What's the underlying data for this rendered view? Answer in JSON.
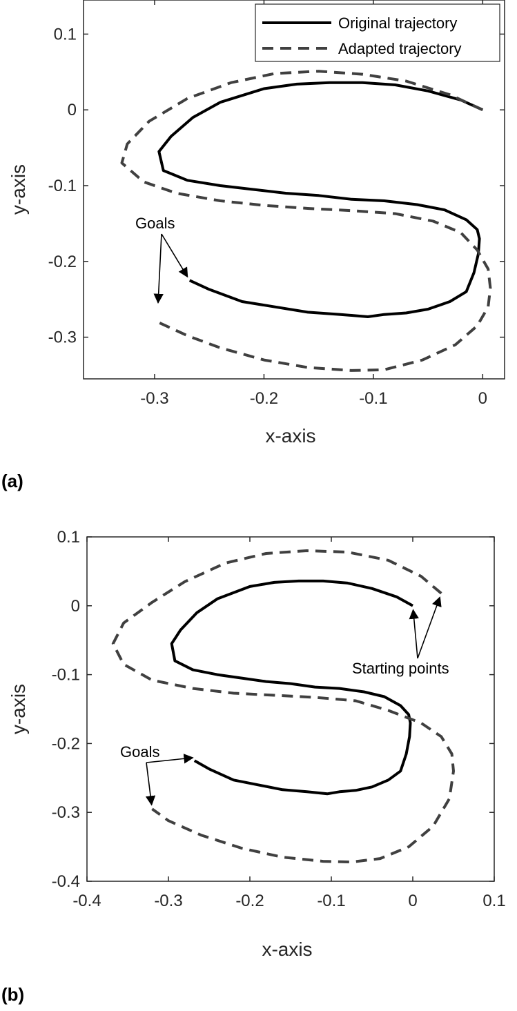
{
  "chart_data": [
    {
      "type": "line",
      "panel_label": "(a)",
      "xlabel": "x-axis",
      "ylabel": "y-axis",
      "xlim": [
        -0.365,
        0.02
      ],
      "ylim": [
        -0.355,
        0.145
      ],
      "xticks": [
        -0.3,
        -0.2,
        -0.1,
        0
      ],
      "xtick_labels": [
        "-0.3",
        "-0.2",
        "-0.1",
        "0"
      ],
      "yticks": [
        0.1,
        0,
        -0.1,
        -0.2,
        -0.3
      ],
      "ytick_labels": [
        "0.1",
        "0",
        "-0.1",
        "-0.2",
        "-0.3"
      ],
      "grid": false,
      "legend": {
        "placement": "top-right",
        "entries": [
          "Original trajectory",
          "Adapted trajectory"
        ]
      },
      "series": [
        {
          "name": "Original trajectory",
          "style": "solid",
          "color": "#000000",
          "x": [
            0,
            -0.02,
            -0.05,
            -0.08,
            -0.11,
            -0.14,
            -0.17,
            -0.2,
            -0.24,
            -0.265,
            -0.285,
            -0.296,
            -0.292,
            -0.27,
            -0.24,
            -0.21,
            -0.18,
            -0.15,
            -0.12,
            -0.09,
            -0.06,
            -0.035,
            -0.015,
            -0.005,
            -0.003,
            -0.004,
            -0.008,
            -0.015,
            -0.03,
            -0.05,
            -0.07,
            -0.09,
            -0.105,
            -0.13,
            -0.16,
            -0.19,
            -0.22,
            -0.25,
            -0.268
          ],
          "y": [
            0,
            0.013,
            0.025,
            0.033,
            0.036,
            0.036,
            0.034,
            0.028,
            0.01,
            -0.01,
            -0.035,
            -0.055,
            -0.08,
            -0.093,
            -0.1,
            -0.105,
            -0.11,
            -0.113,
            -0.118,
            -0.12,
            -0.125,
            -0.132,
            -0.145,
            -0.158,
            -0.17,
            -0.19,
            -0.215,
            -0.24,
            -0.253,
            -0.263,
            -0.268,
            -0.27,
            -0.273,
            -0.27,
            -0.267,
            -0.26,
            -0.253,
            -0.237,
            -0.225
          ]
        },
        {
          "name": "Adapted trajectory",
          "style": "dashed",
          "color": "#404040",
          "x": [
            0,
            -0.03,
            -0.07,
            -0.11,
            -0.15,
            -0.19,
            -0.23,
            -0.27,
            -0.305,
            -0.325,
            -0.33,
            -0.31,
            -0.28,
            -0.24,
            -0.2,
            -0.16,
            -0.12,
            -0.08,
            -0.045,
            -0.02,
            -0.005,
            0.005,
            0.007,
            0.005,
            -0.005,
            -0.025,
            -0.055,
            -0.09,
            -0.12,
            -0.16,
            -0.2,
            -0.24,
            -0.27,
            -0.297
          ],
          "y": [
            0,
            0.02,
            0.038,
            0.047,
            0.051,
            0.048,
            0.036,
            0.015,
            -0.015,
            -0.045,
            -0.07,
            -0.095,
            -0.11,
            -0.12,
            -0.126,
            -0.13,
            -0.133,
            -0.137,
            -0.147,
            -0.162,
            -0.185,
            -0.21,
            -0.235,
            -0.26,
            -0.285,
            -0.31,
            -0.33,
            -0.343,
            -0.344,
            -0.34,
            -0.33,
            -0.314,
            -0.298,
            -0.28
          ]
        }
      ],
      "annotations": [
        {
          "text": "Goals",
          "arrows_to": [
            [
              -0.268,
              -0.225
            ],
            [
              -0.297,
              -0.26
            ]
          ]
        }
      ]
    },
    {
      "type": "line",
      "panel_label": "(b)",
      "xlabel": "x-axis",
      "ylabel": "y-axis",
      "xlim": [
        -0.4,
        0.1
      ],
      "ylim": [
        -0.4,
        0.1
      ],
      "xticks": [
        -0.4,
        -0.3,
        -0.2,
        -0.1,
        0,
        0.1
      ],
      "xtick_labels": [
        "-0.4",
        "-0.3",
        "-0.2",
        "-0.1",
        "0",
        "0.1"
      ],
      "yticks": [
        0.1,
        0,
        -0.1,
        -0.2,
        -0.3,
        -0.4
      ],
      "ytick_labels": [
        "0.1",
        "0",
        "-0.1",
        "-0.2",
        "-0.3",
        "-0.4"
      ],
      "grid": false,
      "series": [
        {
          "name": "Original trajectory",
          "style": "solid",
          "color": "#000000",
          "x": [
            0,
            -0.02,
            -0.05,
            -0.08,
            -0.11,
            -0.14,
            -0.17,
            -0.2,
            -0.24,
            -0.265,
            -0.285,
            -0.296,
            -0.292,
            -0.27,
            -0.24,
            -0.21,
            -0.18,
            -0.15,
            -0.12,
            -0.09,
            -0.06,
            -0.035,
            -0.015,
            -0.005,
            -0.003,
            -0.004,
            -0.008,
            -0.015,
            -0.03,
            -0.05,
            -0.07,
            -0.09,
            -0.105,
            -0.13,
            -0.16,
            -0.19,
            -0.22,
            -0.25,
            -0.268
          ],
          "y": [
            0,
            0.013,
            0.025,
            0.033,
            0.036,
            0.036,
            0.034,
            0.028,
            0.01,
            -0.01,
            -0.035,
            -0.055,
            -0.08,
            -0.093,
            -0.1,
            -0.105,
            -0.11,
            -0.113,
            -0.118,
            -0.12,
            -0.125,
            -0.132,
            -0.145,
            -0.158,
            -0.17,
            -0.19,
            -0.215,
            -0.24,
            -0.253,
            -0.263,
            -0.268,
            -0.27,
            -0.273,
            -0.27,
            -0.267,
            -0.26,
            -0.253,
            -0.237,
            -0.225
          ]
        },
        {
          "name": "Adapted trajectory",
          "style": "dashed",
          "color": "#404040",
          "x": [
            0.035,
            0.01,
            -0.03,
            -0.08,
            -0.13,
            -0.18,
            -0.23,
            -0.28,
            -0.32,
            -0.355,
            -0.368,
            -0.355,
            -0.32,
            -0.27,
            -0.22,
            -0.17,
            -0.12,
            -0.07,
            -0.03,
            0.01,
            0.035,
            0.048,
            0.05,
            0.045,
            0.025,
            -0.005,
            -0.04,
            -0.075,
            -0.11,
            -0.16,
            -0.21,
            -0.26,
            -0.3,
            -0.32
          ],
          "y": [
            0.018,
            0.043,
            0.066,
            0.078,
            0.08,
            0.076,
            0.062,
            0.035,
            0.005,
            -0.025,
            -0.055,
            -0.085,
            -0.108,
            -0.12,
            -0.127,
            -0.13,
            -0.133,
            -0.138,
            -0.152,
            -0.17,
            -0.19,
            -0.215,
            -0.24,
            -0.28,
            -0.32,
            -0.35,
            -0.367,
            -0.372,
            -0.371,
            -0.365,
            -0.352,
            -0.333,
            -0.312,
            -0.295
          ]
        }
      ],
      "annotations": [
        {
          "text": "Goals",
          "arrows_to": [
            [
              -0.265,
              -0.22
            ],
            [
              -0.32,
              -0.295
            ]
          ]
        },
        {
          "text": "Starting points",
          "arrows_to": [
            [
              0,
              0
            ],
            [
              0.035,
              0.018
            ]
          ]
        }
      ]
    }
  ]
}
